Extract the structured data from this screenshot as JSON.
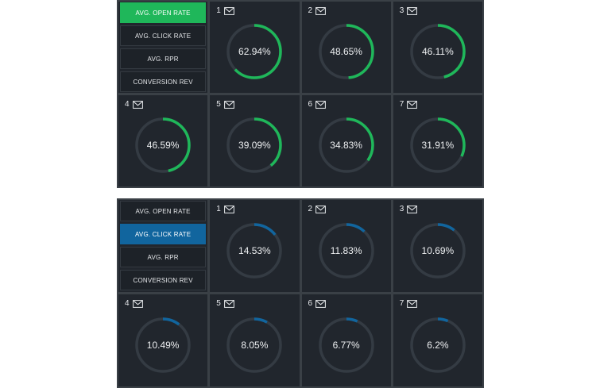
{
  "menu": {
    "open_rate": "AVG. OPEN RATE",
    "click_rate": "AVG. CLICK RATE",
    "rpr": "AVG. RPR",
    "conversion_rev": "CONVERSION REV"
  },
  "colors": {
    "green": "#1fb75a",
    "blue": "#11659e",
    "track": "#343b43"
  },
  "top_panel": {
    "active_tab": "open_rate",
    "cards": [
      {
        "num": "1",
        "value": "62.94%",
        "level": 62.94
      },
      {
        "num": "2",
        "value": "48.65%",
        "level": 48.65
      },
      {
        "num": "3",
        "value": "46.11%",
        "level": 46.11
      },
      {
        "num": "4",
        "value": "46.59%",
        "level": 46.59
      },
      {
        "num": "5",
        "value": "39.09%",
        "level": 39.09
      },
      {
        "num": "6",
        "value": "34.83%",
        "level": 34.83
      },
      {
        "num": "7",
        "value": "31.91%",
        "level": 31.91
      }
    ]
  },
  "bottom_panel": {
    "active_tab": "click_rate",
    "cards": [
      {
        "num": "1",
        "value": "14.53%",
        "level": 14.53
      },
      {
        "num": "2",
        "value": "11.83%",
        "level": 11.83
      },
      {
        "num": "3",
        "value": "10.69%",
        "level": 10.69
      },
      {
        "num": "4",
        "value": "10.49%",
        "level": 10.49
      },
      {
        "num": "5",
        "value": "8.05%",
        "level": 8.05
      },
      {
        "num": "6",
        "value": "6.77%",
        "level": 6.77
      },
      {
        "num": "7",
        "value": "6.2%",
        "level": 6.2
      }
    ]
  }
}
